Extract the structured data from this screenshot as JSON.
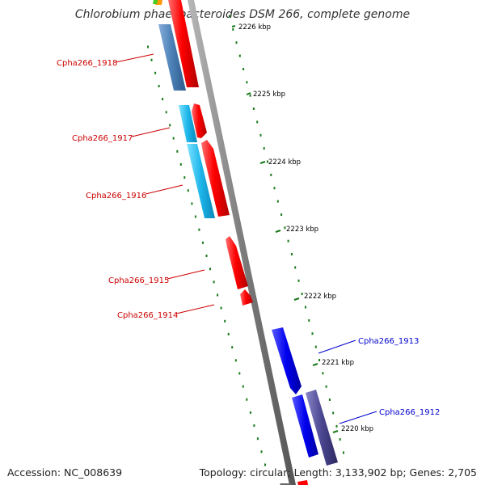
{
  "title": "Chlorobium phaeobacteroides DSM 266, complete genome",
  "accession": "Accession: NC_008639",
  "summary": "Topology: circular; Length: 3,133,902 bp; Genes: 2,705",
  "ticks": [
    "2226 kbp",
    "2225 kbp",
    "2224 kbp",
    "2223 kbp",
    "2222 kbp",
    "2221 kbp",
    "2220 kbp"
  ],
  "genes_left": [
    "Cpha266_1918",
    "Cpha266_1917",
    "Cpha266_1916",
    "Cpha266_1915",
    "Cpha266_1914"
  ],
  "genes_right": [
    "Cpha266_1913",
    "Cpha266_1912"
  ],
  "colors": {
    "backbone": "#8c8c8c",
    "tick": "#1a7a1a",
    "label_left": "#cc0000",
    "label_right": "#0000cc",
    "feature_red": "#ff0000",
    "feature_cyan": "#22bbee",
    "feature_steel": "#4a7fb5",
    "feature_blue": "#0000ee",
    "feature_slate": "#4a4690"
  }
}
